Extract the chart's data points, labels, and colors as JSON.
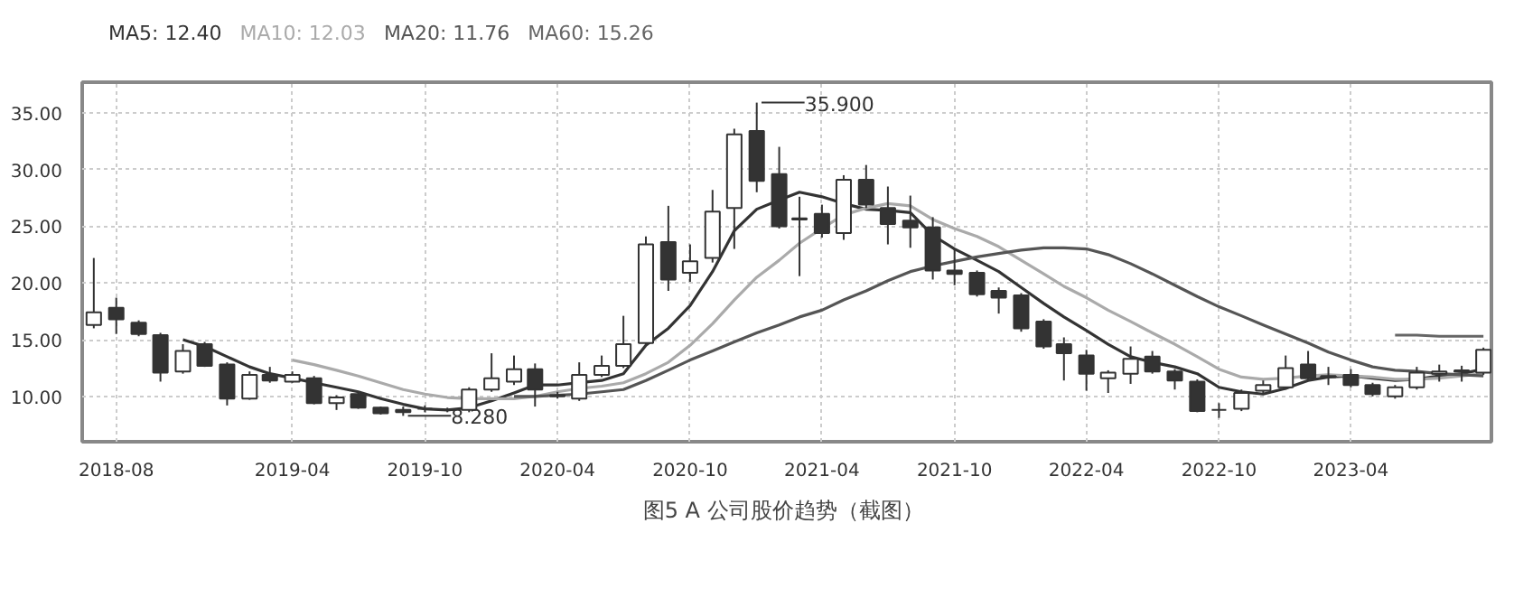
{
  "chart_data": {
    "type": "candlestick",
    "title": "图5  A 公司股价趋势（截图）",
    "x": [
      "2018-07",
      "2018-08",
      "2018-09",
      "2018-10",
      "2018-11",
      "2018-12",
      "2019-01",
      "2019-02",
      "2019-03",
      "2019-04",
      "2019-05",
      "2019-06",
      "2019-07",
      "2019-08",
      "2019-09",
      "2019-10",
      "2019-11",
      "2019-12",
      "2020-01",
      "2020-02",
      "2020-03",
      "2020-04",
      "2020-05",
      "2020-06",
      "2020-07",
      "2020-08",
      "2020-09",
      "2020-10",
      "2020-11",
      "2020-12",
      "2021-01",
      "2021-02",
      "2021-03",
      "2021-04",
      "2021-05",
      "2021-06",
      "2021-07",
      "2021-08",
      "2021-09",
      "2021-10",
      "2021-11",
      "2021-12",
      "2022-01",
      "2022-02",
      "2022-03",
      "2022-04",
      "2022-05",
      "2022-06",
      "2022-07",
      "2022-08",
      "2022-09",
      "2022-10",
      "2022-11",
      "2022-12",
      "2023-01",
      "2023-02",
      "2023-03",
      "2023-04",
      "2023-05",
      "2023-06",
      "2023-07",
      "2023-08",
      "2023-09",
      "2023-10"
    ],
    "ohlc": [
      [
        16.3,
        22.2,
        16.0,
        17.4
      ],
      [
        17.8,
        18.7,
        15.5,
        16.8
      ],
      [
        16.5,
        16.7,
        15.3,
        15.5
      ],
      [
        15.4,
        15.6,
        11.3,
        12.1
      ],
      [
        12.2,
        14.6,
        12.0,
        14.0
      ],
      [
        14.6,
        14.8,
        12.6,
        12.7
      ],
      [
        12.8,
        13.0,
        9.2,
        9.8
      ],
      [
        9.8,
        12.2,
        9.7,
        11.9
      ],
      [
        11.9,
        12.6,
        11.2,
        11.4
      ],
      [
        11.3,
        12.2,
        11.2,
        11.9
      ],
      [
        11.6,
        11.8,
        9.3,
        9.4
      ],
      [
        9.4,
        10.1,
        8.8,
        9.9
      ],
      [
        10.2,
        10.3,
        8.9,
        9.0
      ],
      [
        9.0,
        9.1,
        8.4,
        8.5
      ],
      [
        8.8,
        9.1,
        8.28,
        8.6
      ],
      [
        8.9,
        9.2,
        8.6,
        8.9
      ],
      [
        8.8,
        9.0,
        8.6,
        8.8
      ],
      [
        8.8,
        10.8,
        8.6,
        10.6
      ],
      [
        10.6,
        13.8,
        10.4,
        11.6
      ],
      [
        11.3,
        13.6,
        11.0,
        12.4
      ],
      [
        12.4,
        12.9,
        9.1,
        10.6
      ],
      [
        10.1,
        10.4,
        9.8,
        10.0
      ],
      [
        9.8,
        13.0,
        9.6,
        11.9
      ],
      [
        11.9,
        13.6,
        11.7,
        12.7
      ],
      [
        12.7,
        17.1,
        12.5,
        14.6
      ],
      [
        14.7,
        24.1,
        14.5,
        23.4
      ],
      [
        23.6,
        26.8,
        19.3,
        20.3
      ],
      [
        20.9,
        23.4,
        20.1,
        21.9
      ],
      [
        22.2,
        28.2,
        21.8,
        26.3
      ],
      [
        26.6,
        33.6,
        23.0,
        33.1
      ],
      [
        33.4,
        35.9,
        28.0,
        29.0
      ],
      [
        29.6,
        32.0,
        24.8,
        25.0
      ],
      [
        25.6,
        27.6,
        20.6,
        25.7
      ],
      [
        26.1,
        26.9,
        24.0,
        24.4
      ],
      [
        24.4,
        29.5,
        23.8,
        29.1
      ],
      [
        29.1,
        30.4,
        26.6,
        26.9
      ],
      [
        26.6,
        28.5,
        23.4,
        25.2
      ],
      [
        25.5,
        27.7,
        23.1,
        24.9
      ],
      [
        24.9,
        25.8,
        20.3,
        21.1
      ],
      [
        21.1,
        23.0,
        19.8,
        20.8
      ],
      [
        20.9,
        21.1,
        18.8,
        19.0
      ],
      [
        19.3,
        19.6,
        17.3,
        18.7
      ],
      [
        18.9,
        19.1,
        15.7,
        16.0
      ],
      [
        16.6,
        16.8,
        14.2,
        14.4
      ],
      [
        14.6,
        15.2,
        11.4,
        13.8
      ],
      [
        13.6,
        14.1,
        10.5,
        12.0
      ],
      [
        11.6,
        12.3,
        10.3,
        12.1
      ],
      [
        12.0,
        14.4,
        11.1,
        13.3
      ],
      [
        13.5,
        14.0,
        12.0,
        12.2
      ],
      [
        12.2,
        12.4,
        10.6,
        11.4
      ],
      [
        11.3,
        11.5,
        8.6,
        8.7
      ],
      [
        8.8,
        9.4,
        8.1,
        8.8
      ],
      [
        8.9,
        10.6,
        8.7,
        10.3
      ],
      [
        10.5,
        11.4,
        10.2,
        11.0
      ],
      [
        10.8,
        13.6,
        10.6,
        12.5
      ],
      [
        12.8,
        14.0,
        11.4,
        11.6
      ],
      [
        11.8,
        12.6,
        11.0,
        11.7
      ],
      [
        11.9,
        12.4,
        10.8,
        11.0
      ],
      [
        11.0,
        11.2,
        10.0,
        10.2
      ],
      [
        10.0,
        11.0,
        9.8,
        10.8
      ],
      [
        10.8,
        12.6,
        10.6,
        12.1
      ],
      [
        12.0,
        12.8,
        11.3,
        12.2
      ],
      [
        12.2,
        12.7,
        11.3,
        12.3
      ],
      [
        12.1,
        14.3,
        11.9,
        14.1
      ]
    ],
    "color": "#333333",
    "series": [
      {
        "type": "line",
        "name": "MA5: 12.40",
        "color": "#333333",
        "x": [
          "2018-11",
          "2018-12",
          "2019-01",
          "2019-02",
          "2019-03",
          "2019-04",
          "2019-05",
          "2019-06",
          "2019-07",
          "2019-08",
          "2019-09",
          "2019-10",
          "2019-11",
          "2019-12",
          "2020-01",
          "2020-02",
          "2020-03",
          "2020-04",
          "2020-05",
          "2020-06",
          "2020-07",
          "2020-08",
          "2020-09",
          "2020-10",
          "2020-11",
          "2020-12",
          "2021-01",
          "2021-02",
          "2021-03",
          "2021-04",
          "2021-05",
          "2021-06",
          "2021-07",
          "2021-08",
          "2021-09",
          "2021-10",
          "2021-11",
          "2021-12",
          "2022-01",
          "2022-02",
          "2022-03",
          "2022-04",
          "2022-05",
          "2022-06",
          "2022-07",
          "2022-08",
          "2022-09",
          "2022-10",
          "2022-11",
          "2022-12",
          "2023-01",
          "2023-02",
          "2023-03",
          "2023-04",
          "2023-05",
          "2023-06",
          "2023-07",
          "2023-08",
          "2023-09",
          "2023-10"
        ],
        "values": [
          15.0,
          14.4,
          13.5,
          12.6,
          12.0,
          11.6,
          11.2,
          10.8,
          10.4,
          9.8,
          9.3,
          8.9,
          8.8,
          9.0,
          9.6,
          10.3,
          11.0,
          11.0,
          11.2,
          11.4,
          12.0,
          14.5,
          16.0,
          18.0,
          21.0,
          24.6,
          26.5,
          27.3,
          28.0,
          27.6,
          27.0,
          26.5,
          26.4,
          26.2,
          24.2,
          23.0,
          22.0,
          21.0,
          19.6,
          18.2,
          17.0,
          15.8,
          14.6,
          13.5,
          13.0,
          12.6,
          12.0,
          10.8,
          10.4,
          10.2,
          10.7,
          11.4,
          11.7,
          11.8,
          11.6,
          11.4,
          11.5,
          11.8,
          12.0,
          12.4
        ]
      },
      {
        "type": "line",
        "name": "MA10: 12.03",
        "color": "#aaaaaa",
        "x": [
          "2019-04",
          "2019-05",
          "2019-06",
          "2019-07",
          "2019-08",
          "2019-09",
          "2019-10",
          "2019-11",
          "2019-12",
          "2020-01",
          "2020-02",
          "2020-03",
          "2020-04",
          "2020-05",
          "2020-06",
          "2020-07",
          "2020-08",
          "2020-09",
          "2020-10",
          "2020-11",
          "2020-12",
          "2021-01",
          "2021-02",
          "2021-03",
          "2021-04",
          "2021-05",
          "2021-06",
          "2021-07",
          "2021-08",
          "2021-09",
          "2021-10",
          "2021-11",
          "2021-12",
          "2022-01",
          "2022-02",
          "2022-03",
          "2022-04",
          "2022-05",
          "2022-06",
          "2022-07",
          "2022-08",
          "2022-09",
          "2022-10",
          "2022-11",
          "2022-12",
          "2023-01",
          "2023-02",
          "2023-03",
          "2023-04",
          "2023-05",
          "2023-06",
          "2023-07",
          "2023-08",
          "2023-09",
          "2023-10"
        ],
        "values": [
          13.2,
          12.8,
          12.3,
          11.8,
          11.2,
          10.6,
          10.2,
          9.9,
          9.8,
          9.8,
          9.8,
          10.0,
          10.4,
          10.7,
          10.9,
          11.2,
          12.0,
          13.0,
          14.5,
          16.4,
          18.5,
          20.5,
          22.0,
          23.5,
          24.8,
          26.0,
          26.6,
          27.0,
          26.8,
          25.6,
          24.8,
          24.1,
          23.2,
          22.0,
          20.8,
          19.7,
          18.7,
          17.6,
          16.6,
          15.6,
          14.6,
          13.5,
          12.4,
          11.7,
          11.5,
          11.6,
          11.8,
          11.9,
          11.8,
          11.7,
          11.5,
          11.5,
          11.6,
          11.8,
          12.0
        ]
      },
      {
        "type": "line",
        "name": "MA20: 11.76",
        "color": "#555555",
        "x": [
          "2020-02",
          "2020-03",
          "2020-04",
          "2020-05",
          "2020-06",
          "2020-07",
          "2020-08",
          "2020-09",
          "2020-10",
          "2020-11",
          "2020-12",
          "2021-01",
          "2021-02",
          "2021-03",
          "2021-04",
          "2021-05",
          "2021-06",
          "2021-07",
          "2021-08",
          "2021-09",
          "2021-10",
          "2021-11",
          "2021-12",
          "2022-01",
          "2022-02",
          "2022-03",
          "2022-04",
          "2022-05",
          "2022-06",
          "2022-07",
          "2022-08",
          "2022-09",
          "2022-10",
          "2022-11",
          "2022-12",
          "2023-01",
          "2023-02",
          "2023-03",
          "2023-04",
          "2023-05",
          "2023-06",
          "2023-07",
          "2023-08",
          "2023-09",
          "2023-10"
        ],
        "values": [
          10.0,
          10.0,
          10.1,
          10.2,
          10.4,
          10.6,
          11.4,
          12.3,
          13.2,
          14.0,
          14.8,
          15.6,
          16.3,
          17.0,
          17.6,
          18.5,
          19.3,
          20.2,
          21.0,
          21.5,
          21.9,
          22.3,
          22.6,
          22.9,
          23.1,
          23.1,
          23.0,
          22.5,
          21.7,
          20.8,
          19.8,
          18.8,
          17.9,
          17.1,
          16.3,
          15.5,
          14.7,
          13.9,
          13.2,
          12.6,
          12.3,
          12.2,
          12.0,
          11.9,
          11.8
        ]
      },
      {
        "type": "line",
        "name": "MA60: 15.26",
        "color": "#666666",
        "x": [
          "2023-06",
          "2023-07",
          "2023-08",
          "2023-09",
          "2023-10"
        ],
        "values": [
          15.4,
          15.4,
          15.3,
          15.3,
          15.3
        ]
      }
    ],
    "annotations": [
      {
        "text": "35.900",
        "x": "2021-01",
        "y": 35.9
      },
      {
        "text": "8.280",
        "x": "2019-09",
        "y": 8.28
      }
    ],
    "xlim": [
      "2018-06-15",
      "2023-10-12"
    ],
    "xticks": [
      "2018-08",
      "2019-04",
      "2019-10",
      "2020-04",
      "2020-10",
      "2021-04",
      "2021-10",
      "2022-04",
      "2022-10",
      "2023-04"
    ],
    "ylim": [
      6,
      37.7
    ],
    "yticks": [
      {
        "value": 10,
        "label": "10.00"
      },
      {
        "value": 15,
        "label": "15.00"
      },
      {
        "value": 20,
        "label": "20.00"
      },
      {
        "value": 25,
        "label": "25.00"
      },
      {
        "value": 30,
        "label": "30.00"
      },
      {
        "value": 35,
        "label": "35.00"
      }
    ],
    "grid": true
  }
}
